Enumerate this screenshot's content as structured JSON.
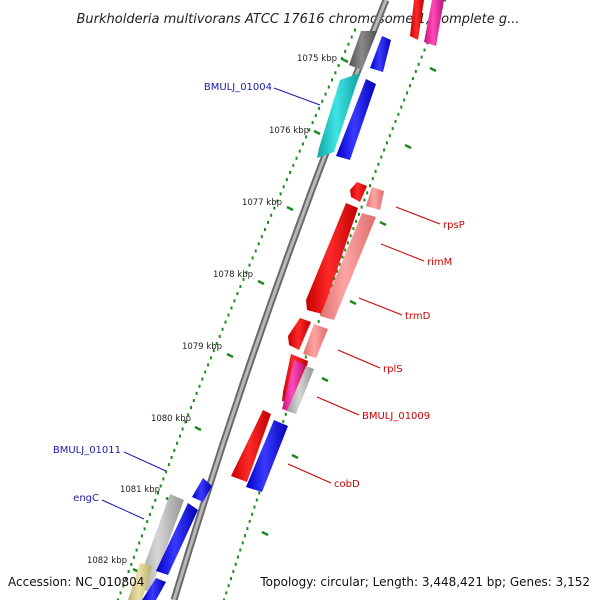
{
  "title": "Burkholderia multivorans ATCC 17616 chromosome 1, complete g...",
  "footer": {
    "accession": "Accession: NC_010804",
    "topology": "Topology: circular; Length: 3,448,421 bp; Genes: 3,152"
  },
  "ticks": [
    {
      "label": "1075 kbp"
    },
    {
      "label": "1076 kbp"
    },
    {
      "label": "1077 kbp"
    },
    {
      "label": "1078 kbp"
    },
    {
      "label": "1079 kbp"
    },
    {
      "label": "1080 kbp"
    },
    {
      "label": "1081 kbp"
    },
    {
      "label": "1082 kbp"
    }
  ],
  "gene_labels": {
    "bmulj_01004": "BMULJ_01004",
    "rpsp": "rpsP",
    "rimm": "rimM",
    "trmd": "trmD",
    "rpls": "rplS",
    "bmulj_01009": "BMULJ_01009",
    "cobd": "cobD",
    "bmulj_01011": "BMULJ_01011",
    "engc": "engC"
  },
  "colors": {
    "backbone": "#8c8c8c",
    "tick_green": "#1e8a1e",
    "cds_blue": "#1010ee",
    "cds_red": "#ee1010",
    "cds_pink": "#f08c8c",
    "cds_cyan": "#20c8c8",
    "cds_grey": "#b4b4b4",
    "cds_magenta": "#e8209c",
    "cds_khaki": "#d8cc88",
    "label_blue": "#1a1aaa",
    "label_red": "#cc0000"
  }
}
